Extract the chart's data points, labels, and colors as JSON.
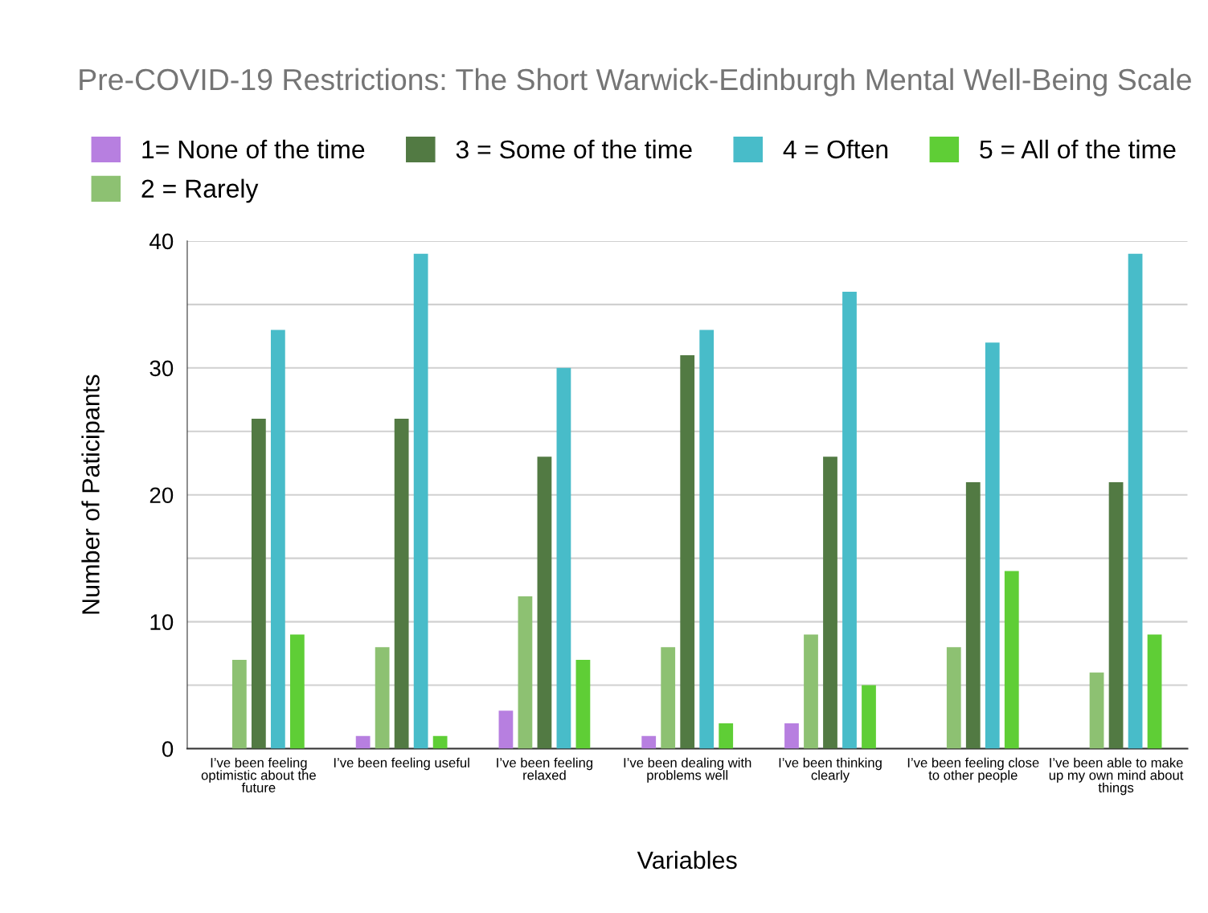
{
  "chart_data": {
    "type": "bar",
    "title": "Pre-COVID-19 Restrictions: The Short Warwick-Edinburgh Mental Well-Being Scale",
    "xlabel": "Variables",
    "ylabel": "Number of Paticipants",
    "categories": [
      "I’ve been feeling\noptimistic about the\nfuture",
      "I’ve been feeling useful",
      "I’ve been feeling\nrelaxed",
      "I’ve been dealing with\nproblems well",
      "I’ve been thinking\nclearly",
      "I’ve been feeling close\nto other people",
      "I’ve been able to make\nup my own mind about\nthings"
    ],
    "series": [
      {
        "name": "1= None of the time",
        "color": "#b77fe0",
        "values": [
          0,
          1,
          3,
          1,
          2,
          0,
          0
        ]
      },
      {
        "name": "2 = Rarely",
        "color": "#8dc172",
        "values": [
          7,
          8,
          12,
          8,
          9,
          8,
          6
        ]
      },
      {
        "name": "3 = Some of the time",
        "color": "#527a43",
        "values": [
          26,
          26,
          23,
          31,
          23,
          21,
          21
        ]
      },
      {
        "name": "4 = Often",
        "color": "#48bcc9",
        "values": [
          33,
          39,
          30,
          33,
          36,
          32,
          39
        ]
      },
      {
        "name": "5 = All of the time",
        "color": "#5fce36",
        "values": [
          9,
          1,
          7,
          2,
          5,
          14,
          9
        ]
      }
    ],
    "ylim": [
      0,
      40
    ],
    "yticks": [
      0,
      {
        "value": 5,
        "label": null
      },
      10,
      {
        "value": 15,
        "label": null
      },
      20,
      {
        "value": 25,
        "label": null
      },
      30,
      {
        "value": 35,
        "label": null
      },
      40
    ],
    "grid": "y",
    "legend": "top"
  }
}
